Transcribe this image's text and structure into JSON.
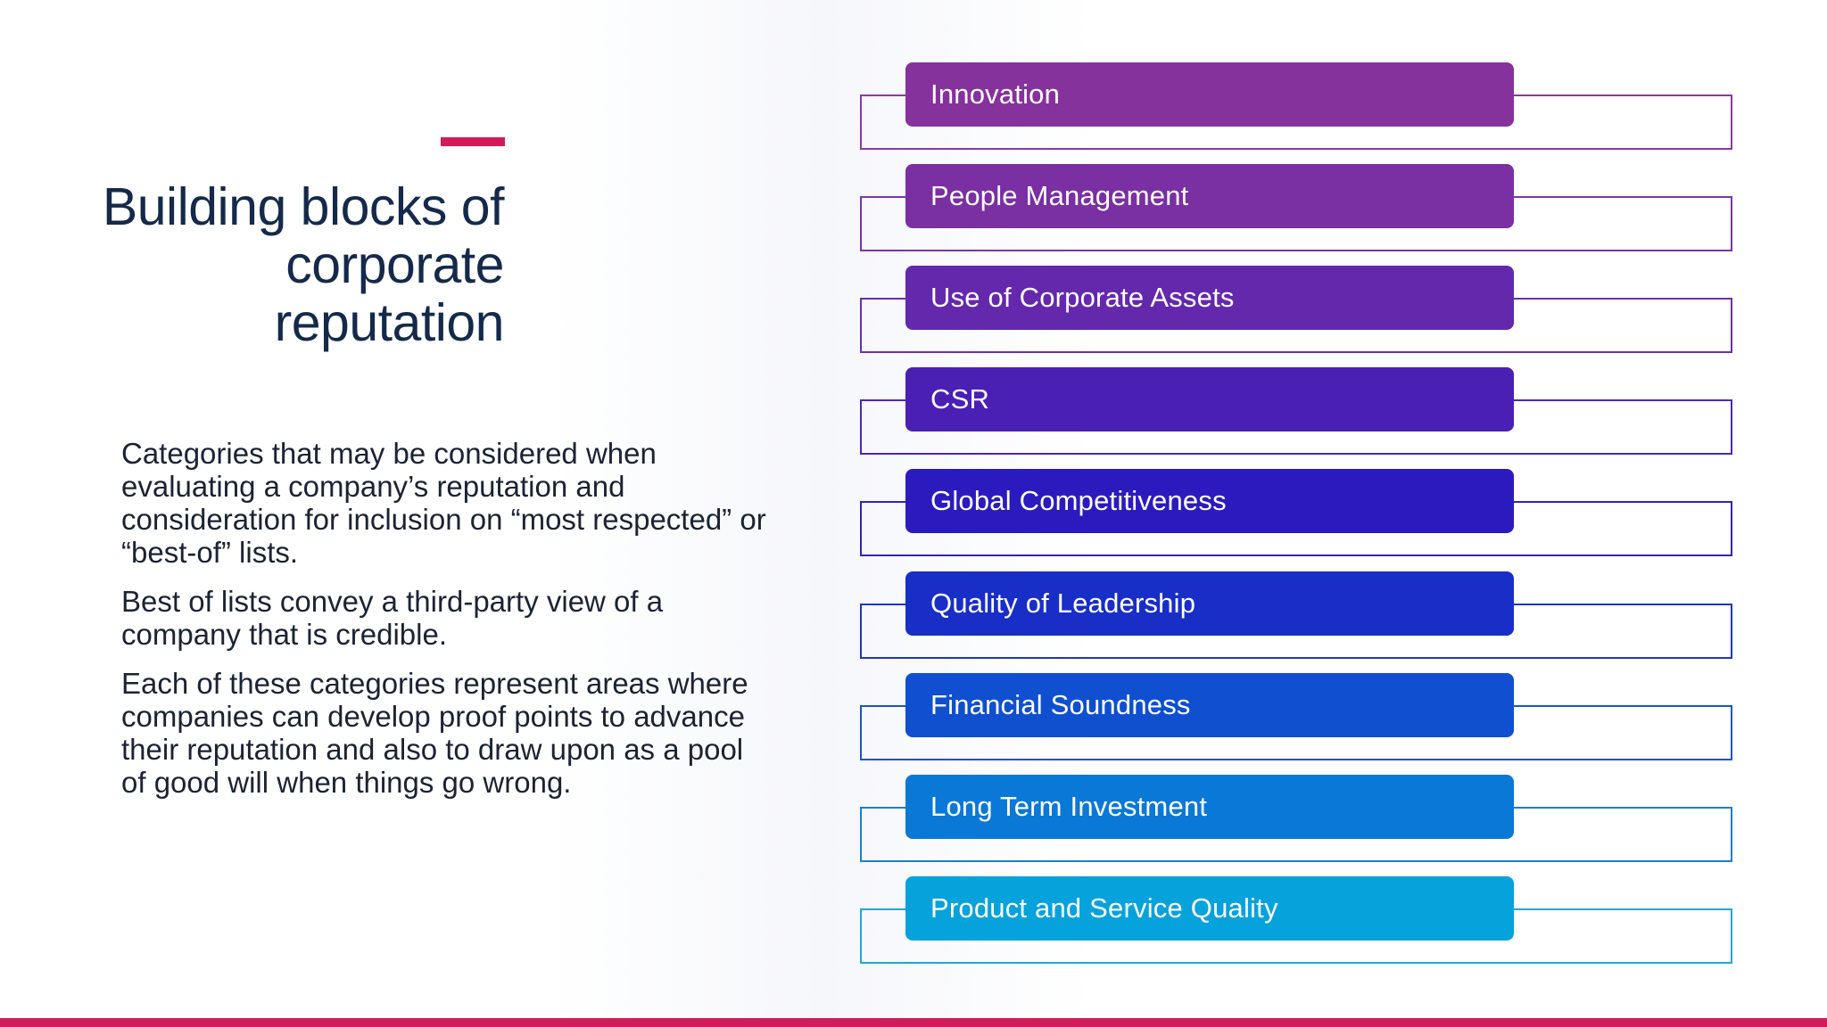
{
  "slide": {
    "title": "Building blocks of corporate reputation",
    "paragraphs": [
      "Categories that may be considered when evaluating a company’s reputation and consideration for inclusion on “most respected” or “best-of” lists.",
      "Best of lists convey a third-party view of a company that is credible.",
      "Each of these categories represent areas where companies can develop proof points to advance their reputation and also to draw upon as a pool of good will when things go wrong."
    ]
  },
  "blocks": [
    {
      "label": "Innovation",
      "color": "#86329c",
      "outline": "#8a3aa3"
    },
    {
      "label": "People Management",
      "color": "#7a2fa3",
      "outline": "#7d35a8"
    },
    {
      "label": "Use of Corporate Assets",
      "color": "#6428ad",
      "outline": "#6a30ad"
    },
    {
      "label": "CSR",
      "color": "#4a1fb4",
      "outline": "#4d27b3"
    },
    {
      "label": "Global Competitiveness",
      "color": "#2b1bbf",
      "outline": "#3124b8"
    },
    {
      "label": "Quality of Leadership",
      "color": "#182ec7",
      "outline": "#2235bf"
    },
    {
      "label": "Financial Soundness",
      "color": "#0f4fd0",
      "outline": "#1b55c6"
    },
    {
      "label": "Long Term Investment",
      "color": "#0a78d6",
      "outline": "#1b7fcf"
    },
    {
      "label": "Product and Service Quality",
      "color": "#06a2dc",
      "outline": "#22a6d8"
    }
  ],
  "colors": {
    "accent": "#d21c5a",
    "title": "#152a4a"
  }
}
